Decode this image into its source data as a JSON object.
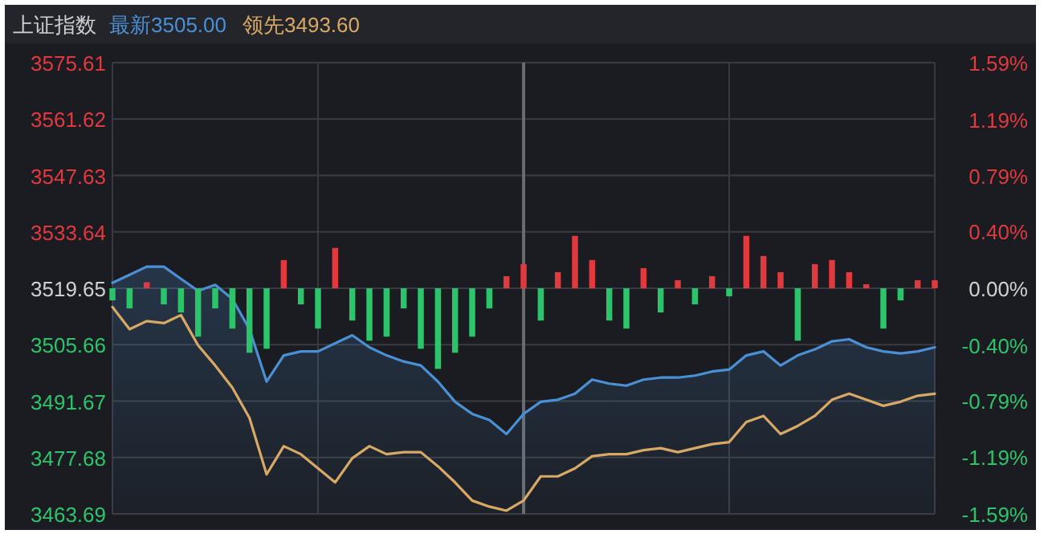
{
  "chart_data": {
    "type": "line",
    "title": "上证指数",
    "legend": "top left",
    "grid": true,
    "categories": [
      null,
      null,
      null,
      null,
      null,
      null,
      null,
      null,
      null,
      null,
      null,
      null,
      null,
      null,
      null,
      null,
      null,
      null,
      null,
      null,
      null,
      null,
      null,
      null,
      null,
      null,
      null,
      null,
      null,
      null,
      null,
      null,
      null,
      null,
      null,
      null,
      null,
      null,
      null,
      null,
      null,
      null,
      null,
      null,
      null,
      null,
      null,
      null,
      null
    ],
    "ylim": [
      3463.69,
      3575.61
    ],
    "yticks": [
      3463.69,
      3477.68,
      3491.67,
      3505.66,
      3519.65,
      3533.64,
      3547.63,
      3561.62,
      3575.61
    ],
    "y2lim": [
      -1.59,
      1.59
    ],
    "y2ticks": [
      {
        "value": -1.59,
        "label": "-1.59%"
      },
      {
        "value": -1.19,
        "label": "-1.19%"
      },
      {
        "value": -0.79,
        "label": "-0.79%"
      },
      {
        "value": -0.4,
        "label": "-0.40%"
      },
      {
        "value": 0,
        "label": "0.00%"
      },
      {
        "value": 0.4,
        "label": "0.40%"
      },
      {
        "value": 0.79,
        "label": "0.79%"
      },
      {
        "value": 1.19,
        "label": "1.19%"
      },
      {
        "value": 1.59,
        "label": "1.59%"
      }
    ],
    "series": [
      {
        "type": "bar",
        "base": [
          3519.65,
          3519.65,
          3519.65,
          3519.65,
          3519.65,
          3519.65,
          3519.65,
          3519.65,
          3519.65,
          3519.65,
          3519.65,
          3519.65,
          3519.65,
          3519.65,
          3519.65,
          3519.65,
          3519.65,
          3519.65,
          3519.65,
          3519.65,
          3519.65,
          3519.65,
          3519.65,
          3519.65,
          3519.65,
          3519.65,
          3519.65,
          3519.65,
          3519.65,
          3519.65,
          3519.65,
          3519.65,
          3519.65,
          3519.65,
          3519.65,
          3519.65,
          3519.65,
          3519.65,
          3519.65,
          3519.65,
          3519.65,
          3519.65,
          3519.65,
          3519.65,
          3519.65,
          3519.65,
          3519.65,
          3519.65,
          3519.65
        ],
        "values": [
          -3,
          -5,
          1.5,
          -4,
          -6,
          -12,
          -5,
          -10,
          -16,
          -15,
          7,
          -4,
          -10,
          10,
          -8,
          -13,
          -12,
          -5,
          -15,
          -20,
          -16,
          -12,
          -5,
          3,
          6,
          -8,
          4,
          13,
          7,
          -8,
          -10,
          5,
          -6,
          2,
          -4,
          3,
          -2,
          13,
          8,
          4,
          -13,
          6,
          7,
          4,
          1,
          -10,
          -3,
          2,
          2
        ],
        "colors": [
          "#2bc46a",
          "#2bc46a",
          "#e0393e",
          "#2bc46a",
          "#2bc46a",
          "#2bc46a",
          "#2bc46a",
          "#2bc46a",
          "#2bc46a",
          "#2bc46a",
          "#e0393e",
          "#2bc46a",
          "#2bc46a",
          "#e0393e",
          "#2bc46a",
          "#2bc46a",
          "#2bc46a",
          "#2bc46a",
          "#2bc46a",
          "#2bc46a",
          "#2bc46a",
          "#2bc46a",
          "#2bc46a",
          "#e0393e",
          "#e0393e",
          "#2bc46a",
          "#e0393e",
          "#e0393e",
          "#e0393e",
          "#2bc46a",
          "#2bc46a",
          "#e0393e",
          "#2bc46a",
          "#e0393e",
          "#2bc46a",
          "#e0393e",
          "#2bc46a",
          "#e0393e",
          "#e0393e",
          "#e0393e",
          "#2bc46a",
          "#e0393e",
          "#e0393e",
          "#e0393e",
          "#e0393e",
          "#2bc46a",
          "#2bc46a",
          "#e0393e",
          "#e0393e"
        ]
      },
      {
        "type": "area",
        "name": "最新3505.00",
        "color": "#4a90d4",
        "values": [
          3521,
          3523,
          3525,
          3525,
          3522,
          3519,
          3520.5,
          3517,
          3509.5,
          3496.5,
          3503,
          3504,
          3504,
          3506,
          3508,
          3505,
          3503,
          3501.5,
          3500.5,
          3496.5,
          3491.5,
          3488.5,
          3487,
          3483.5,
          3488.5,
          3491.5,
          3492,
          3493.5,
          3497,
          3496,
          3495.5,
          3497,
          3497.5,
          3497.5,
          3498,
          3499,
          3499.5,
          3503,
          3504,
          3500.5,
          3503,
          3504.5,
          3506.5,
          3507,
          3505,
          3504,
          3503.5,
          3504,
          3505
        ]
      },
      {
        "name": "领先3493.60",
        "color": "#d8a865",
        "values": [
          3515,
          3509.5,
          3511.5,
          3511,
          3513,
          3505.5,
          3500.5,
          3495,
          3487.5,
          3473.5,
          3480.5,
          3478.5,
          3475,
          3471.5,
          3477.5,
          3480.5,
          3478.5,
          3479,
          3479,
          3475.5,
          3471.5,
          3467,
          3465.5,
          3464.5,
          3467,
          3473,
          3473,
          3475,
          3478,
          3478.5,
          3478.5,
          3479.5,
          3480,
          3479,
          3480,
          3481,
          3481.5,
          3486.5,
          3488,
          3483.5,
          3485.5,
          3488,
          3492,
          3493.5,
          3492,
          3490.5,
          3491.5,
          3493,
          3493.5
        ]
      }
    ]
  }
}
